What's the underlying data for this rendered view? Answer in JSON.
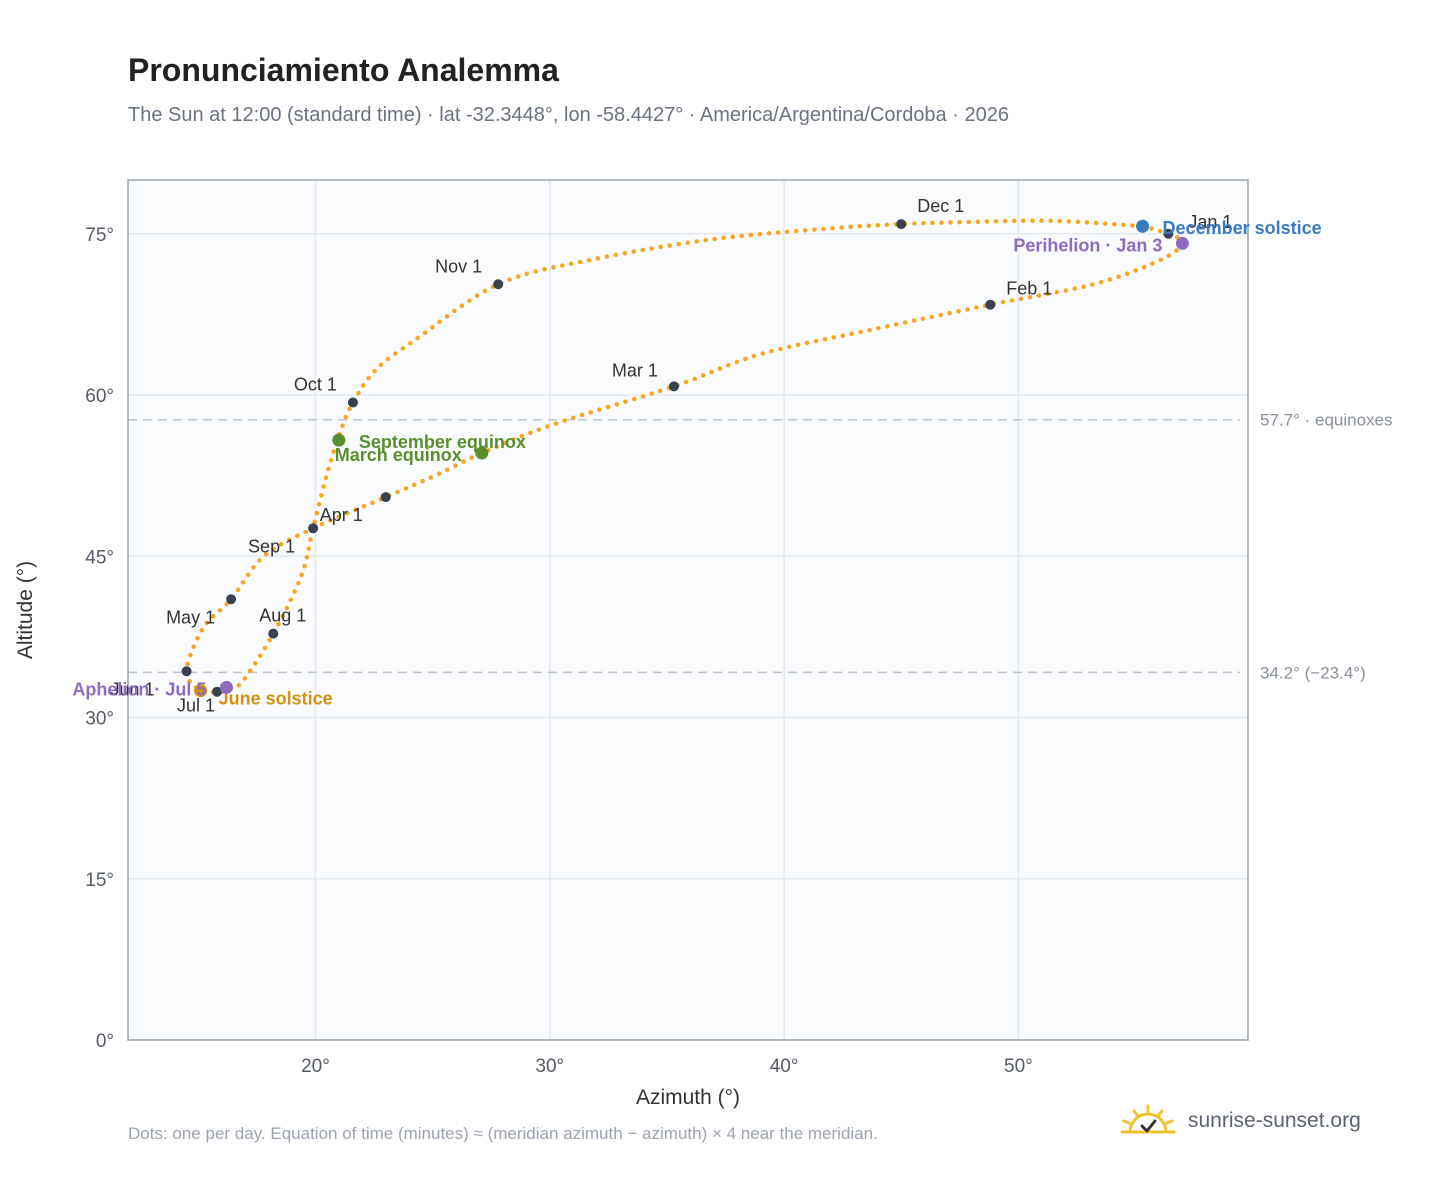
{
  "header": {
    "title": "Pronunciamiento Analemma",
    "subtitle": "The Sun at 12:00 (standard time) · lat -32.3448°, lon -58.4427° · America/Argentina/Cordoba · 2026"
  },
  "footer": {
    "note": "Dots: one per day. Equation of time (minutes) ≈ (meridian azimuth − azimuth) × 4 near the meridian.",
    "brand": "sunrise-sunset.org",
    "brand_icon": "sun-logo-icon"
  },
  "colors": {
    "curve": "#f5a623",
    "month_dot": "#374151",
    "grid": "#e5e9f0",
    "plot_bg": "#f9fbfd",
    "frame": "#9aa3b0",
    "equinox": "#5a8f2e",
    "june_solstice": "#d4920f",
    "december_solstice": "#3b7bbf",
    "apsis": "#8e6bbf",
    "reference_line": "#bfc5cf"
  },
  "chart_data": {
    "type": "scatter",
    "xlabel": "Azimuth (°)",
    "ylabel": "Altitude (°)",
    "xlim": [
      12,
      59.8
    ],
    "ylim": [
      0,
      80
    ],
    "xticks": [
      20,
      30,
      40,
      50
    ],
    "yticks": [
      0,
      15,
      30,
      45,
      60,
      75
    ],
    "tick_suffix": "°",
    "grid": true,
    "reference_lines": [
      {
        "altitude": 57.7,
        "label": "57.7° · equinoxes"
      },
      {
        "altitude": 34.2,
        "label": "34.2° (−23.4°)"
      }
    ],
    "analemma_path": [
      [
        55.3,
        75.7
      ],
      [
        56.4,
        75.0
      ],
      [
        57.0,
        74.1
      ],
      [
        56.0,
        72.5
      ],
      [
        53.2,
        70.3
      ],
      [
        48.8,
        68.4
      ],
      [
        44.0,
        66.2
      ],
      [
        39.0,
        63.8
      ],
      [
        35.3,
        60.8
      ],
      [
        30.2,
        57.3
      ],
      [
        27.1,
        54.6
      ],
      [
        25.2,
        52.6
      ],
      [
        23.0,
        50.5
      ],
      [
        19.9,
        47.6
      ],
      [
        17.8,
        45.0
      ],
      [
        16.4,
        41.0
      ],
      [
        15.2,
        38.3
      ],
      [
        14.5,
        34.3
      ],
      [
        15.1,
        32.5
      ],
      [
        15.8,
        32.4
      ],
      [
        16.3,
        32.6
      ],
      [
        16.9,
        33.4
      ],
      [
        18.2,
        37.8
      ],
      [
        19.4,
        43.2
      ],
      [
        19.9,
        47.6
      ],
      [
        20.5,
        52.7
      ],
      [
        21.1,
        56.8
      ],
      [
        21.6,
        59.3
      ],
      [
        22.6,
        62.4
      ],
      [
        24.3,
        65.2
      ],
      [
        27.8,
        70.3
      ],
      [
        31.8,
        72.6
      ],
      [
        37.0,
        74.5
      ],
      [
        42.0,
        75.5
      ],
      [
        45.0,
        75.9
      ],
      [
        48.0,
        76.1
      ],
      [
        51.5,
        76.2
      ],
      [
        55.3,
        75.7
      ]
    ],
    "month_markers": [
      {
        "label": "Jan 1",
        "x": 56.4,
        "y": 75.0
      },
      {
        "label": "Feb 1",
        "x": 48.8,
        "y": 68.4
      },
      {
        "label": "Mar 1",
        "x": 35.3,
        "y": 60.8
      },
      {
        "label": "Apr 1",
        "x": 23.0,
        "y": 50.5
      },
      {
        "label": "May 1",
        "x": 16.4,
        "y": 41.0
      },
      {
        "label": "Jun 1",
        "x": 14.5,
        "y": 34.3
      },
      {
        "label": "Jul 1",
        "x": 15.8,
        "y": 32.4
      },
      {
        "label": "Aug 1",
        "x": 18.2,
        "y": 37.8
      },
      {
        "label": "Sep 1",
        "x": 19.9,
        "y": 47.6
      },
      {
        "label": "Oct 1",
        "x": 21.6,
        "y": 59.3
      },
      {
        "label": "Nov 1",
        "x": 27.8,
        "y": 70.3
      },
      {
        "label": "Dec 1",
        "x": 45.0,
        "y": 75.9
      }
    ],
    "events": [
      {
        "label": "March equinox",
        "x": 27.1,
        "y": 54.6,
        "kind": "equinox"
      },
      {
        "label": "September equinox",
        "x": 21.0,
        "y": 55.8,
        "kind": "equinox"
      },
      {
        "label": "June solstice",
        "x": 15.1,
        "y": 32.5,
        "kind": "june_solstice"
      },
      {
        "label": "December solstice",
        "x": 55.3,
        "y": 75.7,
        "kind": "december_solstice"
      },
      {
        "label": "Perihelion · Jan 3",
        "x": 57.0,
        "y": 74.1,
        "kind": "apsis"
      },
      {
        "label": "Aphelion · Jul 5",
        "x": 16.2,
        "y": 32.8,
        "kind": "apsis"
      }
    ]
  }
}
